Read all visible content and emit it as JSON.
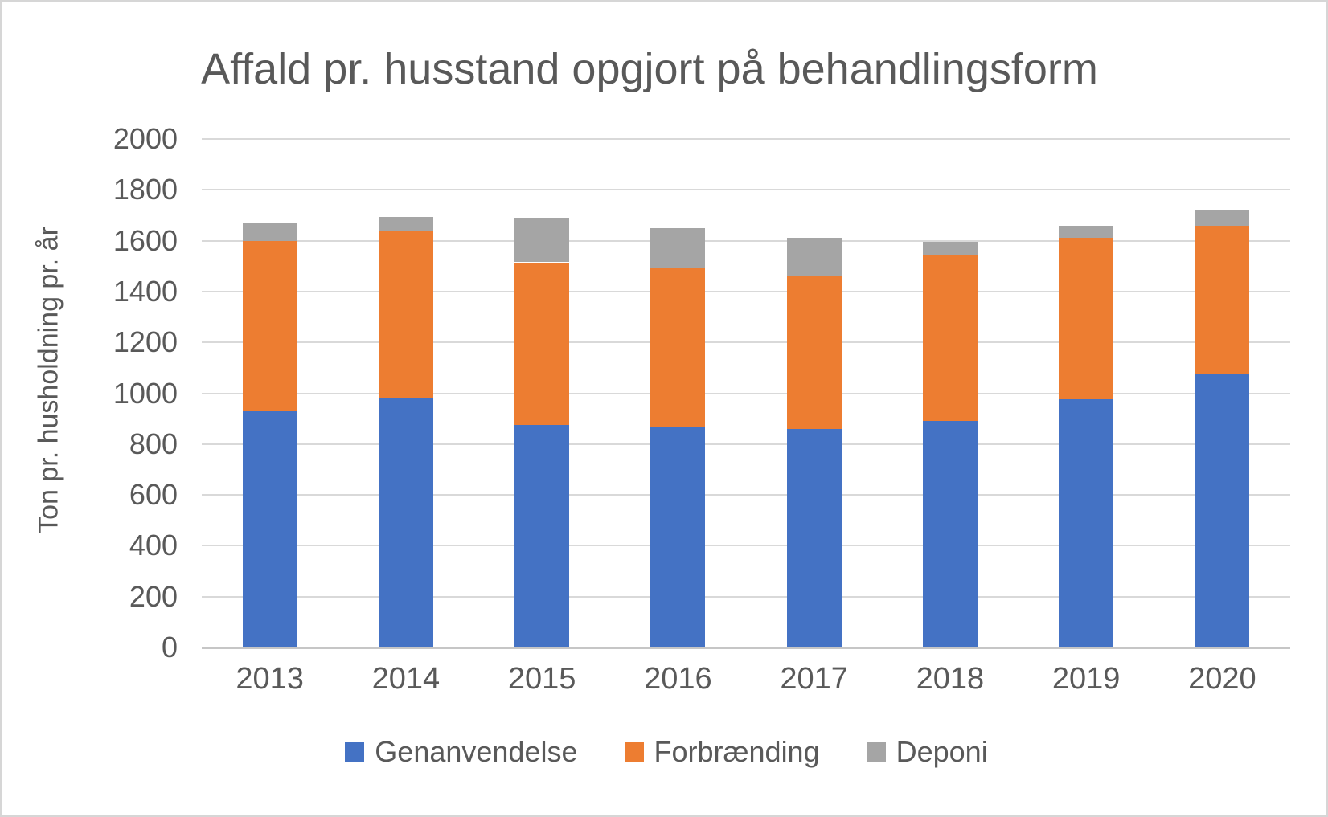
{
  "chart": {
    "title": "Affald pr. husstand opgjort på behandlingsform",
    "y_axis_title": "Ton pr. husholdning pr. år"
  },
  "chart_data": {
    "type": "bar",
    "stacked": true,
    "title": "Affald pr. husstand opgjort på behandlingsform",
    "ylabel": "Ton pr. husholdning pr. år",
    "xlabel": "",
    "categories": [
      "2013",
      "2014",
      "2015",
      "2016",
      "2017",
      "2018",
      "2019",
      "2020"
    ],
    "series": [
      {
        "name": "Genanvendelse",
        "color": "#4472C4",
        "values": [
          930,
          980,
          875,
          865,
          860,
          890,
          975,
          1075
        ]
      },
      {
        "name": "Forbrænding",
        "color": "#ED7D31",
        "values": [
          670,
          660,
          640,
          630,
          600,
          655,
          635,
          585
        ]
      },
      {
        "name": "Deponi",
        "color": "#A5A5A5",
        "values": [
          70,
          55,
          175,
          155,
          150,
          50,
          50,
          60
        ]
      }
    ],
    "stack_totals": [
      1670,
      1695,
      1690,
      1650,
      1610,
      1595,
      1660,
      1720
    ],
    "ylim": [
      0,
      2000
    ],
    "ytick_step": 200,
    "yticks": [
      "0",
      "200",
      "400",
      "600",
      "800",
      "1000",
      "1200",
      "1400",
      "1600",
      "1800",
      "2000"
    ],
    "grid": true,
    "legend_position": "bottom"
  },
  "colors": {
    "text": "#595959",
    "gridline": "#D9D9D9",
    "axis_line": "#C6C6C6",
    "background": "#FFFFFF",
    "frame_border": "#D6D6D6",
    "series_blue": "#4472C4",
    "series_orange": "#ED7D31",
    "series_gray": "#A5A5A5"
  }
}
